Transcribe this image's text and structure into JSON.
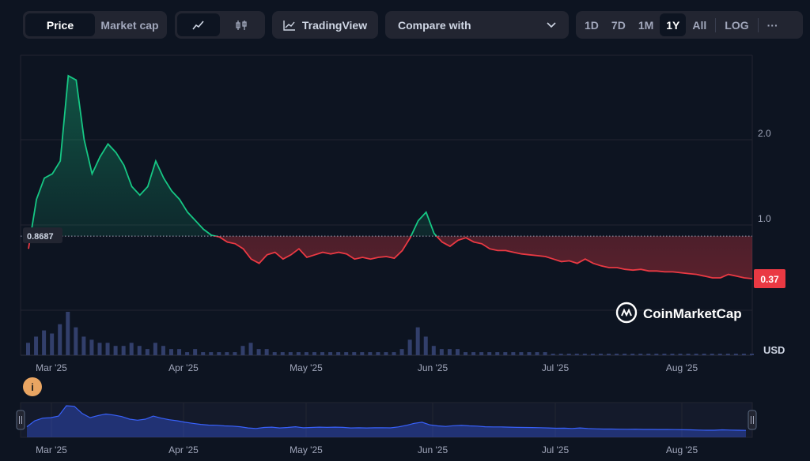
{
  "toolbar": {
    "price_label": "Price",
    "market_cap_label": "Market cap",
    "line_icon": "line-chart-icon",
    "candle_icon": "candlestick-icon",
    "tradingview_label": "TradingView",
    "compare_label": "Compare with",
    "ranges": [
      "1D",
      "7D",
      "1M",
      "1Y",
      "All"
    ],
    "active_range": "1Y",
    "log_label": "LOG",
    "more_label": "···"
  },
  "colors": {
    "up": "#16c784",
    "down": "#ea3943",
    "volume": "#323f6b",
    "navigator": "#3861fb",
    "background": "#0d1421"
  },
  "watermark": "CoinMarketCap",
  "info_badge": "i",
  "chart_data": {
    "type": "line",
    "currency_label": "USD",
    "y_ticks": [
      "2.0",
      "1.0"
    ],
    "y_range": [
      0,
      3.0
    ],
    "x_ticks": [
      "Mar '25",
      "Apr '25",
      "May '25",
      "Jun '25",
      "Jul '25",
      "Aug '25"
    ],
    "reference_value": 0.8687,
    "reference_label": "0.8687",
    "current_value": 0.37,
    "current_label": "0.37",
    "grid": true,
    "series": [
      {
        "values": [
          0.72,
          1.3,
          1.55,
          1.6,
          1.75,
          2.75,
          2.7,
          2.0,
          1.6,
          1.8,
          1.95,
          1.85,
          1.7,
          1.45,
          1.35,
          1.45,
          1.75,
          1.55,
          1.4,
          1.3,
          1.15,
          1.05,
          0.95,
          0.88,
          0.86,
          0.8,
          0.78,
          0.72,
          0.6,
          0.55,
          0.65,
          0.68,
          0.6,
          0.65,
          0.72,
          0.62,
          0.65,
          0.68,
          0.66,
          0.68,
          0.66,
          0.6,
          0.62,
          0.6,
          0.62,
          0.63,
          0.61,
          0.7,
          0.85,
          1.05,
          1.15,
          0.9,
          0.8,
          0.75,
          0.82,
          0.85,
          0.8,
          0.78,
          0.72,
          0.7,
          0.7,
          0.68,
          0.66,
          0.65,
          0.64,
          0.63,
          0.6,
          0.57,
          0.58,
          0.55,
          0.6,
          0.55,
          0.52,
          0.5,
          0.5,
          0.48,
          0.47,
          0.48,
          0.46,
          0.46,
          0.45,
          0.45,
          0.44,
          0.43,
          0.42,
          0.4,
          0.38,
          0.38,
          0.42,
          0.4,
          0.38,
          0.37
        ]
      }
    ],
    "volume": [
      4,
      6,
      8,
      7,
      10,
      14,
      9,
      6,
      5,
      4,
      4,
      3,
      3,
      4,
      3,
      2,
      4,
      3,
      2,
      2,
      1,
      2,
      1,
      1,
      1,
      1,
      1,
      3,
      4,
      2,
      2,
      1,
      1,
      1,
      1,
      1,
      1,
      1,
      1,
      1,
      1,
      1,
      1,
      1,
      1,
      1,
      1,
      2,
      5,
      9,
      6,
      3,
      2,
      2,
      2,
      1,
      1,
      1,
      1,
      1,
      1,
      1,
      1,
      1,
      1,
      1,
      0.5,
      0.5,
      0.5,
      0.5,
      0.5,
      0.5,
      0.5,
      0.5,
      0.5,
      0.5,
      0.5,
      0.5,
      0.5,
      0.5,
      0.5,
      0.5,
      0.5,
      0.5,
      0.5,
      0.5,
      0.5,
      0.5,
      0.5,
      0.5,
      0.5,
      0.5
    ]
  }
}
